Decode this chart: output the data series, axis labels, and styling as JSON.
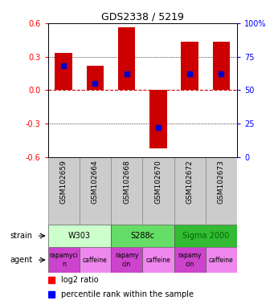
{
  "title": "GDS2338 / 5219",
  "samples": [
    "GSM102659",
    "GSM102664",
    "GSM102668",
    "GSM102670",
    "GSM102672",
    "GSM102673"
  ],
  "log2_ratio": [
    0.33,
    0.22,
    0.56,
    -0.52,
    0.43,
    0.43
  ],
  "percentile": [
    68,
    55,
    62,
    22,
    62,
    62
  ],
  "bar_color": "#cc0000",
  "dot_color": "#0000cc",
  "ylim": [
    -0.6,
    0.6
  ],
  "yticks": [
    -0.6,
    -0.3,
    0.0,
    0.3,
    0.6
  ],
  "y2lim": [
    0,
    100
  ],
  "y2ticks": [
    0,
    25,
    50,
    75,
    100
  ],
  "y2ticklabels": [
    "0",
    "25",
    "50",
    "75",
    "100%"
  ],
  "hline0_color": "#cc0000",
  "strains": [
    {
      "label": "W303",
      "color": "#ccffcc",
      "span": [
        0,
        2
      ],
      "text_color": "#000000"
    },
    {
      "label": "S288c",
      "color": "#66dd66",
      "span": [
        2,
        4
      ],
      "text_color": "#000000"
    },
    {
      "label": "Sigma 2000",
      "color": "#33bb33",
      "span": [
        4,
        6
      ],
      "text_color": "#006600"
    }
  ],
  "agents": [
    {
      "label": "rapamycin",
      "display": "rapamyci\nn",
      "color": "#cc44cc",
      "span": [
        0,
        1
      ]
    },
    {
      "label": "caffeine",
      "display": "caffeine",
      "color": "#ee88ee",
      "span": [
        1,
        2
      ]
    },
    {
      "label": "rapamycin",
      "display": "rapamy\ncin",
      "color": "#cc44cc",
      "span": [
        2,
        3
      ]
    },
    {
      "label": "caffeine",
      "display": "caffeine",
      "color": "#ee88ee",
      "span": [
        3,
        4
      ]
    },
    {
      "label": "rapamycin",
      "display": "rapamy\ncin",
      "color": "#cc44cc",
      "span": [
        4,
        5
      ]
    },
    {
      "label": "caffeine",
      "display": "caffeine",
      "color": "#ee88ee",
      "span": [
        5,
        6
      ]
    }
  ],
  "legend_red_label": "log2 ratio",
  "legend_blue_label": "percentile rank within the sample",
  "strain_label": "strain",
  "agent_label": "agent",
  "sample_bg": "#cccccc",
  "bar_width": 0.55
}
